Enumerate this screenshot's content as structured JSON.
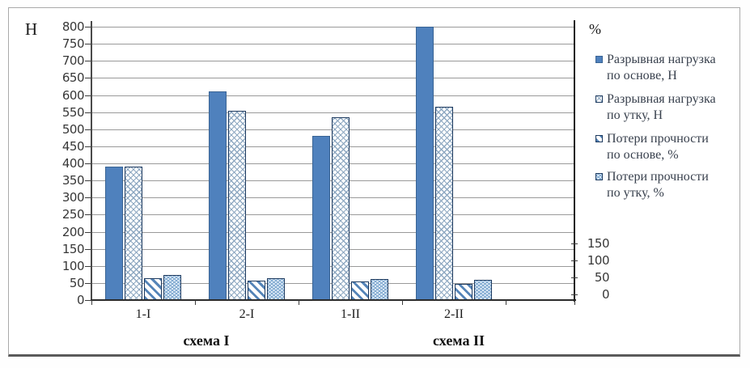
{
  "chart_data": {
    "type": "bar",
    "title": "",
    "categories": [
      "1-I",
      "2-I",
      "1-II",
      "2-II"
    ],
    "group_labels": [
      "схема I",
      "схема II"
    ],
    "series": [
      {
        "key": "razryv-osnova",
        "name": "Разрывная нагрузка по основе, Н",
        "pattern": "solid",
        "values": [
          390,
          610,
          480,
          800
        ]
      },
      {
        "key": "razryv-utok",
        "name": "Разрывная нагрузка по утку, Н",
        "pattern": "cross",
        "values": [
          390,
          555,
          535,
          565
        ]
      },
      {
        "key": "poteri-osnova",
        "name": "Потери прочности по основе, %",
        "pattern": "diag",
        "values": [
          65,
          57,
          55,
          47
        ]
      },
      {
        "key": "poteri-utok",
        "name": "Потери прочности по утку, %",
        "pattern": "dots",
        "values": [
          73,
          65,
          62,
          60
        ]
      }
    ],
    "left_axis": {
      "label": "Н",
      "min": 0,
      "max": 800,
      "step": 50
    },
    "right_axis": {
      "label": "%",
      "ticks": [
        150,
        100,
        50,
        0
      ]
    },
    "legend": {
      "position": "right",
      "entries": [
        {
          "line1": "Разрывная нагрузка",
          "line2": "по основе, Н",
          "pattern": "solid"
        },
        {
          "line1": "Разрывная нагрузка",
          "line2": "по утку, Н",
          "pattern": "cross"
        },
        {
          "line1": "Потери прочности",
          "line2": "по основе, %",
          "pattern": "diag"
        },
        {
          "line1": "Потери прочности",
          "line2": "по утку, %",
          "pattern": "dots"
        }
      ]
    },
    "grid": true,
    "colors": {
      "bar_blue": "#4f81bd",
      "bar_border": "#1d3a5f",
      "gridline": "#9a9a9a",
      "axis": "#2b2b2b"
    }
  }
}
